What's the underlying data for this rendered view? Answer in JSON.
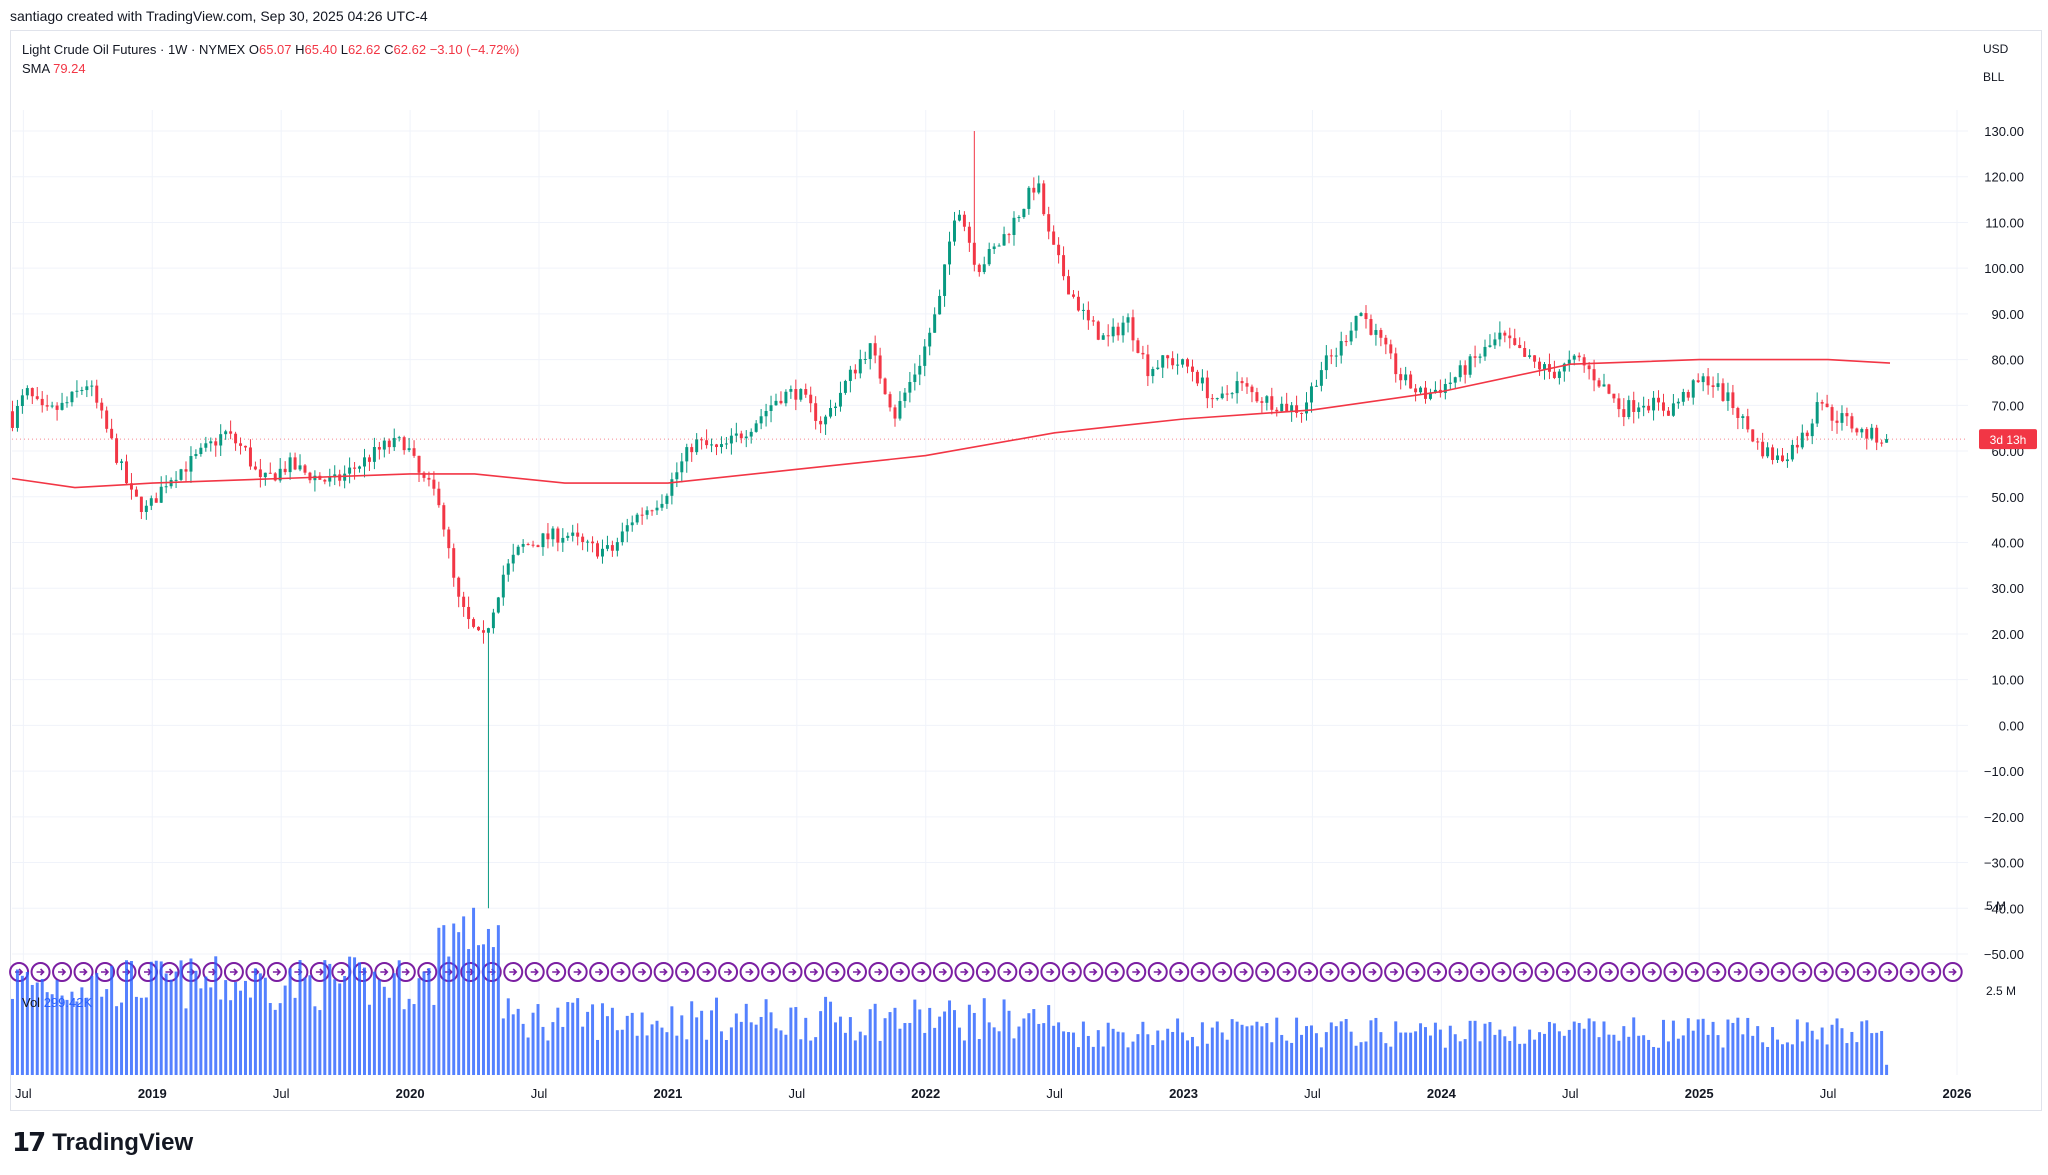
{
  "header": {
    "caption": "santiago created with TradingView.com, Sep 30, 2025 04:26 UTC-4"
  },
  "legend": {
    "symbol": "Light Crude Oil Futures · 1W · NYMEX",
    "o_label": "O",
    "o_value": "65.07",
    "h_label": "H",
    "h_value": "65.40",
    "l_label": "L",
    "l_value": "62.62",
    "c_label": "C",
    "c_value": "62.62",
    "change": "−3.10 (−4.72%)",
    "sma_label": "SMA",
    "sma_value": "79.24"
  },
  "price_scale": {
    "currency": "USD",
    "unit": "BLL",
    "countdown": "3d 13h"
  },
  "volume": {
    "label": "Vol",
    "value": "299.42K",
    "ticks": [
      "5 M",
      "2.5 M"
    ]
  },
  "brand": {
    "logo_icon": "tradingview-logo-icon",
    "name": "TradingView"
  },
  "colors": {
    "up": "#089981",
    "down": "#f23645",
    "sma": "#f23645",
    "volume": "#2962ff",
    "marker": "#7b1fa2"
  },
  "chart_data": {
    "type": "candlestick",
    "interval": "1W",
    "y_axis": {
      "ticks": [
        "130.00",
        "120.00",
        "110.00",
        "100.00",
        "90.00",
        "80.00",
        "70.00",
        "60.00",
        "50.00",
        "40.00",
        "30.00",
        "20.00",
        "10.00",
        "0.00",
        "−10.00",
        "−20.00",
        "−30.00",
        "−40.00",
        "−50.00"
      ],
      "range": [
        -50,
        130
      ]
    },
    "x_axis": {
      "ticks": [
        "Jul",
        "2019",
        "Jul",
        "2020",
        "Jul",
        "2021",
        "Jul",
        "2022",
        "Jul",
        "2023",
        "Jul",
        "2024",
        "Jul",
        "2025",
        "Jul",
        "2026"
      ],
      "range": [
        "2018-05",
        "2026-01"
      ]
    },
    "price_path": [
      [
        2018.4,
        72
      ],
      [
        2018.47,
        66
      ],
      [
        2018.53,
        73
      ],
      [
        2018.6,
        68
      ],
      [
        2018.68,
        70
      ],
      [
        2018.77,
        75
      ],
      [
        2018.86,
        62
      ],
      [
        2018.94,
        50
      ],
      [
        2019.0,
        47
      ],
      [
        2019.08,
        54
      ],
      [
        2019.18,
        58
      ],
      [
        2019.3,
        64
      ],
      [
        2019.38,
        60
      ],
      [
        2019.44,
        53
      ],
      [
        2019.55,
        57
      ],
      [
        2019.62,
        55
      ],
      [
        2019.72,
        53
      ],
      [
        2019.82,
        57
      ],
      [
        2019.92,
        61
      ],
      [
        2020.0,
        62
      ],
      [
        2020.06,
        54
      ],
      [
        2020.13,
        50
      ],
      [
        2020.2,
        28
      ],
      [
        2020.25,
        22
      ],
      [
        2020.3,
        18
      ],
      [
        2020.38,
        33
      ],
      [
        2020.45,
        39
      ],
      [
        2020.55,
        41
      ],
      [
        2020.62,
        42
      ],
      [
        2020.7,
        39
      ],
      [
        2020.8,
        38
      ],
      [
        2020.88,
        45
      ],
      [
        2021.0,
        50
      ],
      [
        2021.12,
        62
      ],
      [
        2021.22,
        60
      ],
      [
        2021.35,
        66
      ],
      [
        2021.45,
        72
      ],
      [
        2021.52,
        73
      ],
      [
        2021.62,
        66
      ],
      [
        2021.72,
        76
      ],
      [
        2021.8,
        83
      ],
      [
        2021.9,
        68
      ],
      [
        2022.0,
        80
      ],
      [
        2022.07,
        92
      ],
      [
        2022.14,
        115
      ],
      [
        2022.22,
        100
      ],
      [
        2022.3,
        105
      ],
      [
        2022.38,
        112
      ],
      [
        2022.45,
        119
      ],
      [
        2022.5,
        106
      ],
      [
        2022.58,
        95
      ],
      [
        2022.65,
        88
      ],
      [
        2022.72,
        84
      ],
      [
        2022.8,
        89
      ],
      [
        2022.88,
        78
      ],
      [
        2022.96,
        80
      ],
      [
        2023.05,
        78
      ],
      [
        2023.15,
        70
      ],
      [
        2023.22,
        75
      ],
      [
        2023.3,
        72
      ],
      [
        2023.4,
        70
      ],
      [
        2023.48,
        69
      ],
      [
        2023.55,
        78
      ],
      [
        2023.62,
        82
      ],
      [
        2023.7,
        91
      ],
      [
        2023.78,
        84
      ],
      [
        2023.86,
        76
      ],
      [
        2023.95,
        72
      ],
      [
        2024.05,
        75
      ],
      [
        2024.15,
        80
      ],
      [
        2024.25,
        85
      ],
      [
        2024.35,
        80
      ],
      [
        2024.45,
        77
      ],
      [
        2024.55,
        80
      ],
      [
        2024.62,
        76
      ],
      [
        2024.72,
        69
      ],
      [
        2024.8,
        71
      ],
      [
        2024.9,
        69
      ],
      [
        2025.0,
        74
      ],
      [
        2025.05,
        76
      ],
      [
        2025.15,
        70
      ],
      [
        2025.25,
        61
      ],
      [
        2025.33,
        58
      ],
      [
        2025.4,
        62
      ],
      [
        2025.45,
        65
      ],
      [
        2025.48,
        73
      ],
      [
        2025.52,
        68
      ],
      [
        2025.58,
        67
      ],
      [
        2025.65,
        64
      ],
      [
        2025.74,
        62.62
      ]
    ],
    "sma": [
      [
        2018.4,
        54
      ],
      [
        2018.7,
        52
      ],
      [
        2019.0,
        53
      ],
      [
        2019.5,
        54
      ],
      [
        2020.0,
        55
      ],
      [
        2020.25,
        55
      ],
      [
        2020.6,
        53
      ],
      [
        2021.0,
        53
      ],
      [
        2021.5,
        56
      ],
      [
        2022.0,
        59
      ],
      [
        2022.5,
        64
      ],
      [
        2023.0,
        67
      ],
      [
        2023.5,
        69
      ],
      [
        2024.0,
        73
      ],
      [
        2024.5,
        79
      ],
      [
        2025.0,
        80
      ],
      [
        2025.5,
        80
      ],
      [
        2025.74,
        79.24
      ]
    ],
    "last_price": 62.62,
    "spike_low": {
      "date": 2020.3,
      "low": -40
    },
    "spike_high": {
      "date": 2022.18,
      "high": 130
    }
  }
}
